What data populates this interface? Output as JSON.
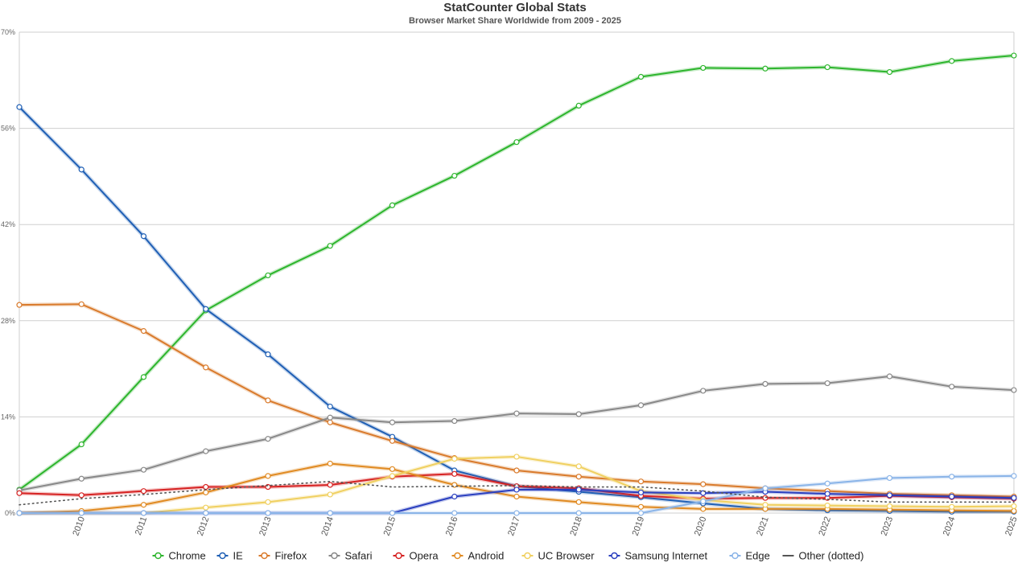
{
  "chart_data": {
    "type": "line",
    "title": "StatCounter Global Stats",
    "subtitle": "Browser Market Share Worldwide from 2009 - 2025",
    "x": [
      "2009",
      "2010",
      "2011",
      "2012",
      "2013",
      "2014",
      "2015",
      "2016",
      "2017",
      "2018",
      "2019",
      "2020",
      "2021",
      "2022",
      "2023",
      "2024",
      "2025"
    ],
    "x_tick_labels": [
      "2010",
      "2011",
      "2012",
      "2013",
      "2014",
      "2015",
      "2016",
      "2017",
      "2018",
      "2019",
      "2020",
      "2021",
      "2022",
      "2023",
      "2024",
      "2025"
    ],
    "y_ticks": [
      0,
      14,
      28,
      42,
      56,
      70
    ],
    "y_tick_labels": [
      "0%",
      "14%",
      "28%",
      "42%",
      "56%",
      "70%"
    ],
    "ylim": [
      0,
      70
    ],
    "grid": true,
    "legend_position": "bottom",
    "series": [
      {
        "name": "Chrome",
        "color": "#2db52d",
        "dotted": false,
        "values": [
          3.4,
          10.0,
          19.8,
          29.5,
          34.6,
          38.9,
          44.8,
          49.1,
          54.0,
          59.3,
          63.5,
          64.8,
          64.7,
          64.9,
          64.2,
          65.8,
          66.6
        ]
      },
      {
        "name": "IE",
        "color": "#1f5fb5",
        "dotted": false,
        "values": [
          59.1,
          50.0,
          40.3,
          29.7,
          23.1,
          15.5,
          11.1,
          6.2,
          3.9,
          3.1,
          2.3,
          1.4,
          0.6,
          0.4,
          0.3,
          0.2,
          0.2
        ]
      },
      {
        "name": "Firefox",
        "color": "#d97a2b",
        "dotted": false,
        "values": [
          30.3,
          30.4,
          26.5,
          21.2,
          16.4,
          13.2,
          10.5,
          8.0,
          6.2,
          5.3,
          4.6,
          4.2,
          3.6,
          3.2,
          2.8,
          2.6,
          2.4
        ]
      },
      {
        "name": "Safari",
        "color": "#888888",
        "dotted": false,
        "values": [
          3.3,
          5.0,
          6.3,
          9.0,
          10.8,
          13.9,
          13.2,
          13.4,
          14.5,
          14.4,
          15.7,
          17.8,
          18.8,
          18.9,
          19.9,
          18.4,
          17.9
        ]
      },
      {
        "name": "Opera",
        "color": "#d62222",
        "dotted": false,
        "values": [
          2.9,
          2.6,
          3.2,
          3.8,
          3.8,
          4.1,
          5.3,
          5.7,
          3.9,
          3.6,
          2.5,
          2.1,
          2.2,
          2.2,
          2.5,
          2.3,
          2.1
        ]
      },
      {
        "name": "Android",
        "color": "#e08a22",
        "dotted": false,
        "values": [
          0.0,
          0.3,
          1.2,
          3.0,
          5.4,
          7.2,
          6.4,
          4.1,
          2.4,
          1.6,
          0.9,
          0.6,
          0.6,
          0.6,
          0.5,
          0.4,
          0.3
        ]
      },
      {
        "name": "UC Browser",
        "color": "#f0d060",
        "dotted": false,
        "values": [
          0.0,
          0.0,
          0.0,
          0.8,
          1.6,
          2.7,
          5.4,
          7.9,
          8.2,
          6.8,
          3.2,
          1.9,
          1.2,
          1.1,
          1.0,
          0.9,
          1.0
        ]
      },
      {
        "name": "Samsung Internet",
        "color": "#2a3fbf",
        "dotted": false,
        "values": [
          0.0,
          0.0,
          0.0,
          0.0,
          0.0,
          0.0,
          0.0,
          2.4,
          3.4,
          3.4,
          3.0,
          2.9,
          3.1,
          2.8,
          2.6,
          2.4,
          2.2
        ]
      },
      {
        "name": "Edge",
        "color": "#8ab4e8",
        "dotted": false,
        "values": [
          0.0,
          0.0,
          0.0,
          0.0,
          0.0,
          0.0,
          0.0,
          0.0,
          0.0,
          0.0,
          0.0,
          1.7,
          3.6,
          4.3,
          5.1,
          5.3,
          5.4
        ]
      },
      {
        "name": "Other (dotted)",
        "color": "#555555",
        "dotted": true,
        "values": [
          1.2,
          2.1,
          2.7,
          3.4,
          4.0,
          4.6,
          3.8,
          3.9,
          4.0,
          3.8,
          3.8,
          3.2,
          2.3,
          2.0,
          1.6,
          1.6,
          1.6
        ]
      }
    ]
  }
}
